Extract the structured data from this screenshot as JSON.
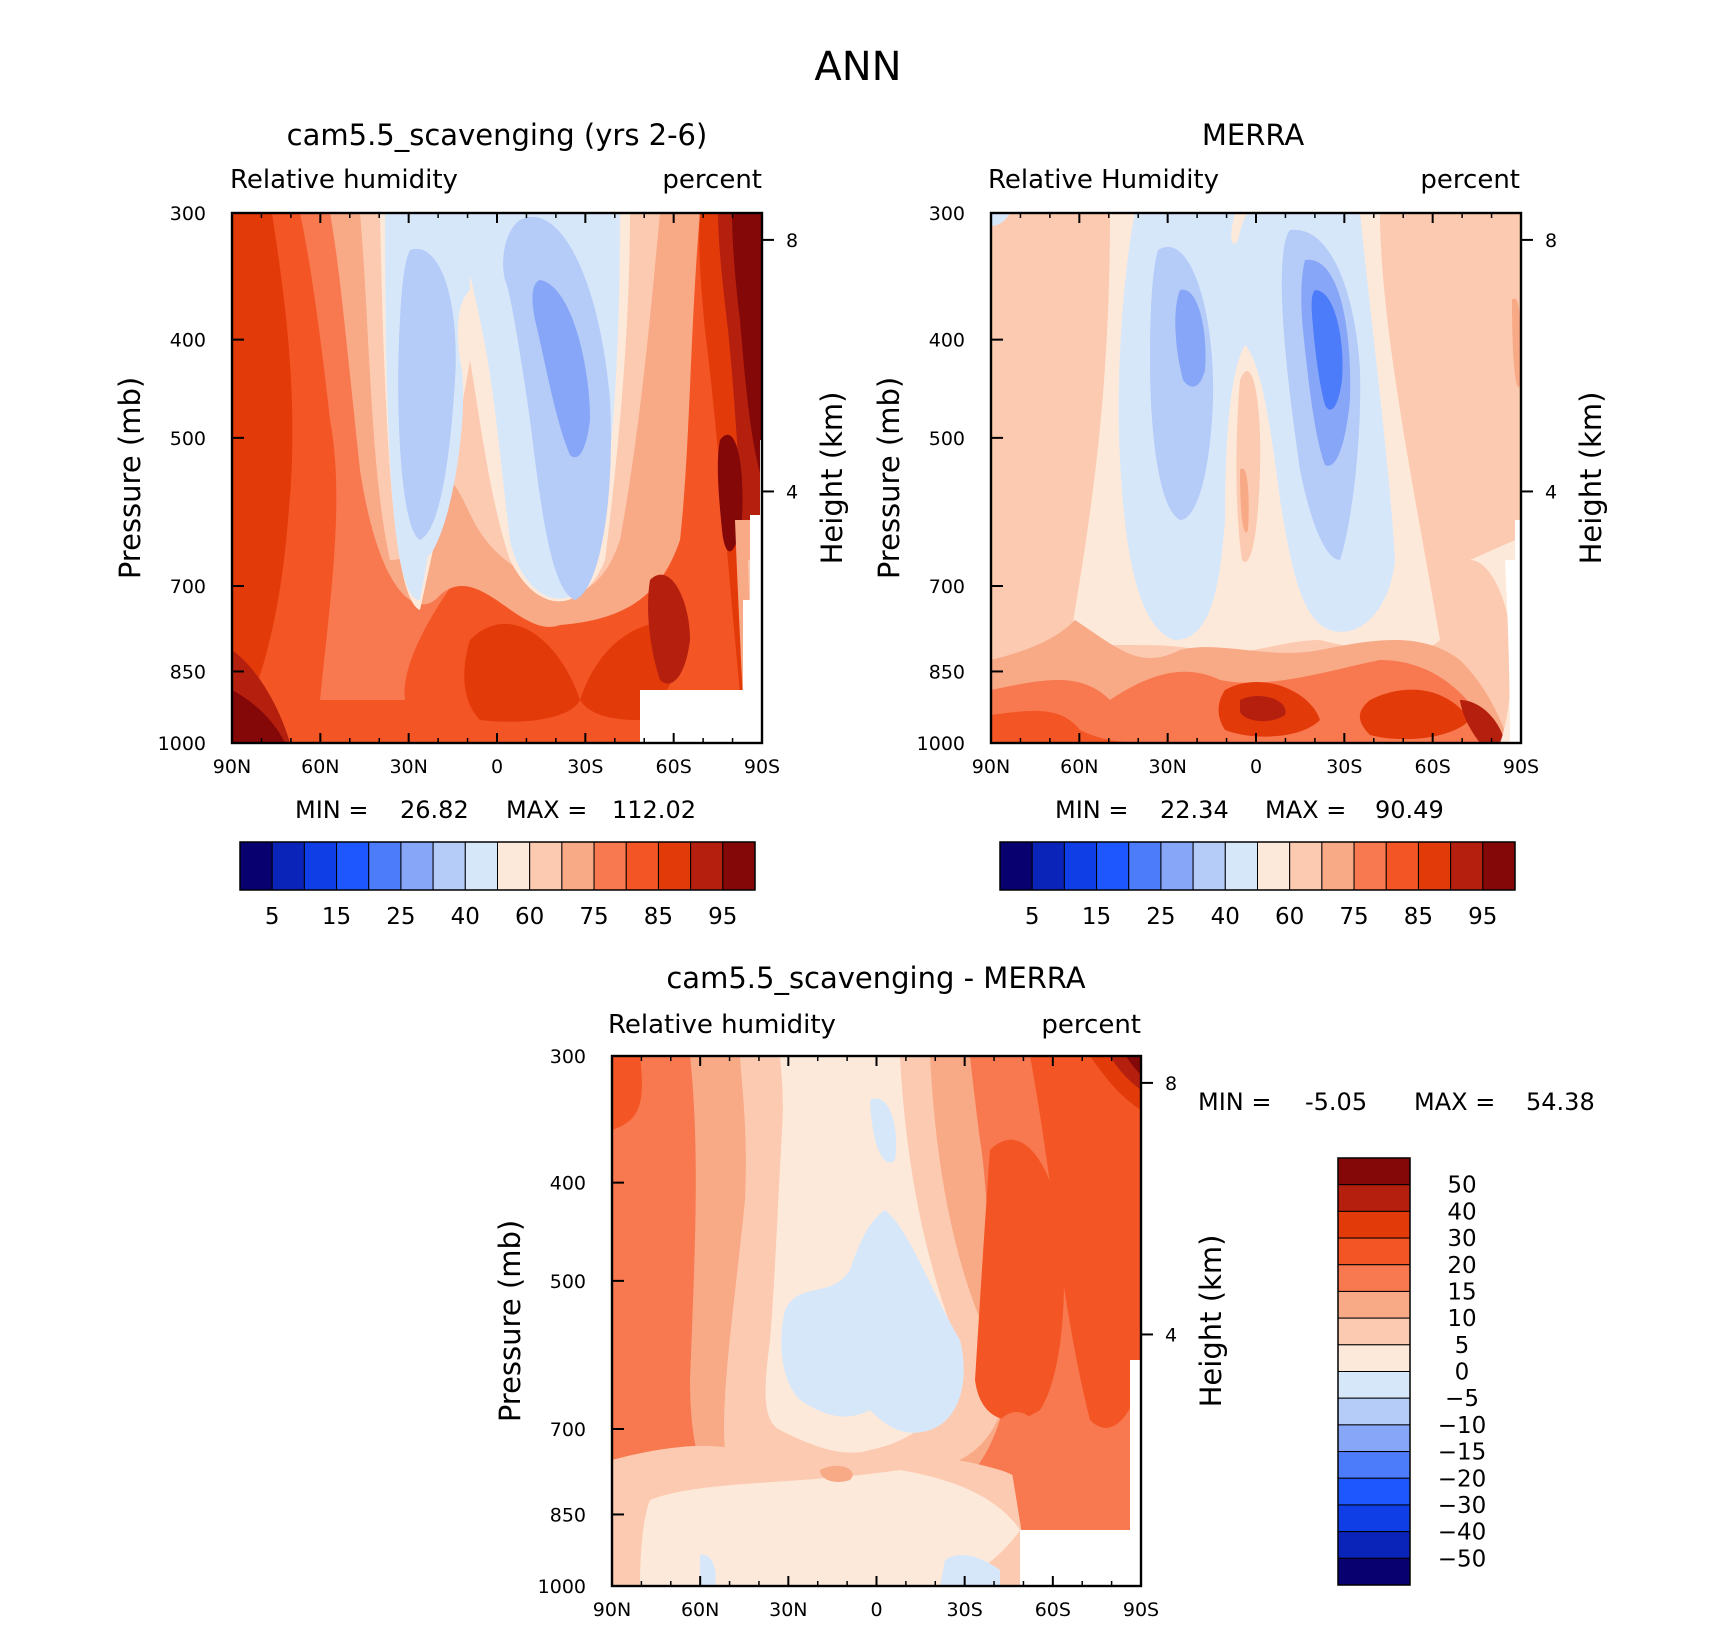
{
  "figure": {
    "title": "ANN"
  },
  "chart_data": [
    {
      "type": "contour",
      "title": "cam5.5_scavenging (yrs 2-6)",
      "variable": "Relative humidity",
      "units": "percent",
      "xlabel": "",
      "ylabel": "Pressure (mb)",
      "right_label": "Height (km)",
      "x_ticks": [
        "90N",
        "60N",
        "30N",
        "0",
        "30S",
        "60S",
        "90S"
      ],
      "y_ticks": [
        300,
        400,
        500,
        700,
        850,
        1000
      ],
      "right_ticks": [
        8,
        4
      ],
      "ylim": [
        1000,
        300
      ],
      "stats": {
        "min_label": "MIN =",
        "min": "26.82",
        "max_label": "MAX =",
        "max": "112.02"
      },
      "colorbar_labels": [
        "5",
        "15",
        "25",
        "40",
        "60",
        "75",
        "85",
        "95"
      ]
    },
    {
      "type": "contour",
      "title": "MERRA",
      "variable": "Relative Humidity",
      "units": "percent",
      "xlabel": "",
      "ylabel": "Pressure (mb)",
      "right_label": "Height (km)",
      "x_ticks": [
        "90N",
        "60N",
        "30N",
        "0",
        "30S",
        "60S",
        "90S"
      ],
      "y_ticks": [
        300,
        400,
        500,
        700,
        850,
        1000
      ],
      "right_ticks": [
        8,
        4
      ],
      "ylim": [
        1000,
        300
      ],
      "stats": {
        "min_label": "MIN =",
        "min": "22.34",
        "max_label": "MAX =",
        "max": "90.49"
      },
      "colorbar_labels": [
        "5",
        "15",
        "25",
        "40",
        "60",
        "75",
        "85",
        "95"
      ]
    },
    {
      "type": "contour",
      "title": "cam5.5_scavenging - MERRA",
      "variable": "Relative humidity",
      "units": "percent",
      "xlabel": "",
      "ylabel": "Pressure (mb)",
      "right_label": "Height (km)",
      "x_ticks": [
        "90N",
        "60N",
        "30N",
        "0",
        "30S",
        "60S",
        "90S"
      ],
      "y_ticks": [
        300,
        400,
        500,
        700,
        850,
        1000
      ],
      "right_ticks": [
        8,
        4
      ],
      "ylim": [
        1000,
        300
      ],
      "stats": {
        "min_label": "MIN =",
        "min": "-5.05",
        "max_label": "MAX =",
        "max": "54.38"
      },
      "colorbar_labels": [
        "50",
        "40",
        "30",
        "20",
        "15",
        "10",
        "5",
        "0",
        "-5",
        "-10",
        "-15",
        "-20",
        "-30",
        "-40",
        "-50"
      ]
    }
  ],
  "palette": {
    "levels16": [
      "#08006e",
      "#0a23b8",
      "#0f3ee6",
      "#1f57ff",
      "#4d7cfb",
      "#87a6f7",
      "#b5cbf8",
      "#d7e7fa",
      "#fde9da",
      "#fccab0",
      "#f8a986",
      "#f8784f",
      "#f45524",
      "#e33a0a",
      "#b5200e",
      "#840808"
    ]
  }
}
